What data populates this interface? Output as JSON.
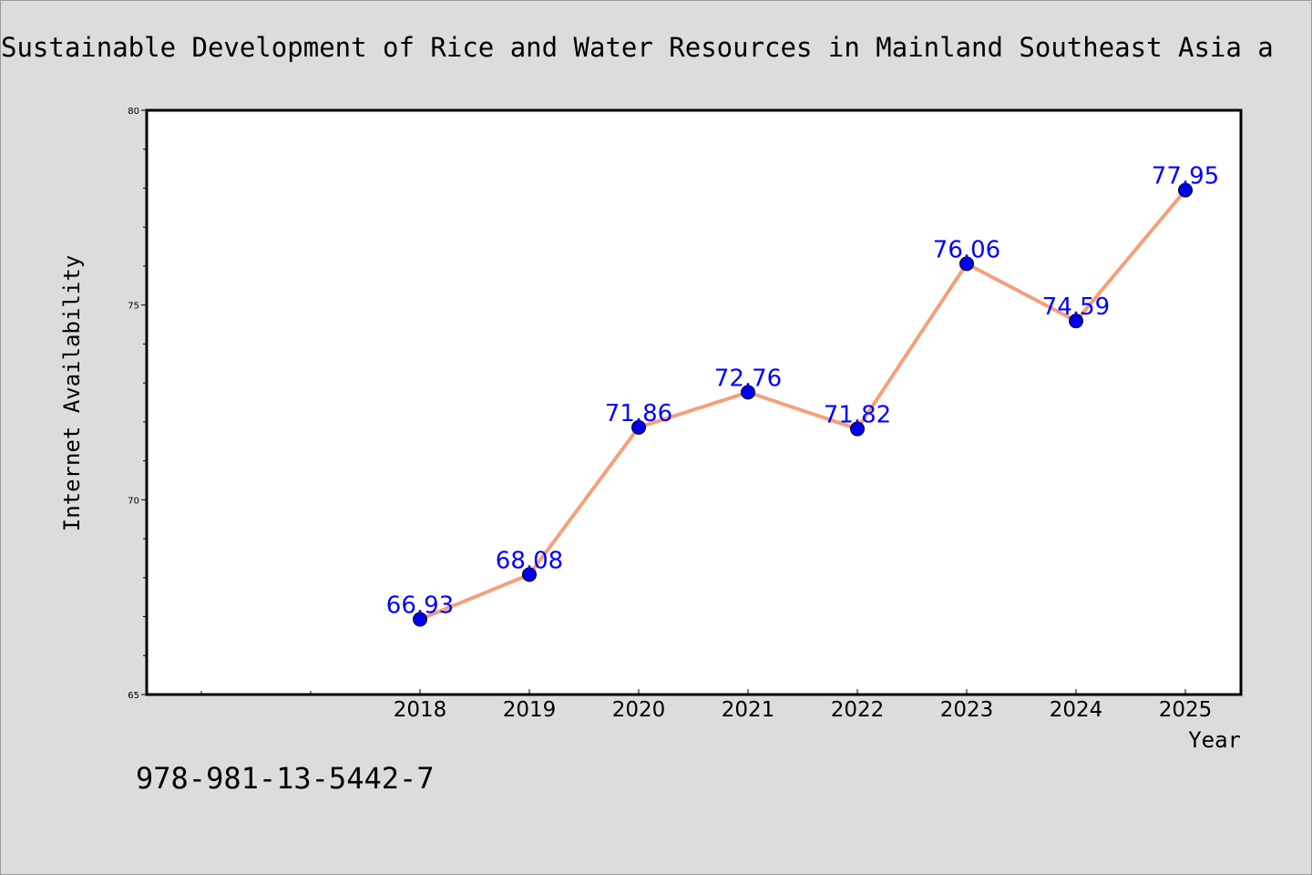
{
  "title": "Sustainable Development of Rice and Water Resources in Mainland Southeast Asia a",
  "footnote": "978-981-13-5442-7",
  "colors": {
    "background": "#dcdcdc",
    "plot_background": "#ffffff",
    "line": "#f4a07a",
    "marker": "#0000ee",
    "label": "#0000ff"
  },
  "chart_data": {
    "type": "line",
    "title": "Sustainable Development of Rice and Water Resources in Mainland Southeast Asia a",
    "xlabel": "Year",
    "ylabel": "Internet Availability",
    "categories": [
      "2018",
      "2019",
      "2020",
      "2021",
      "2022",
      "2023",
      "2024",
      "2025"
    ],
    "series": [
      {
        "values": [
          66.93,
          68.08,
          71.86,
          72.76,
          71.82,
          76.06,
          74.59,
          77.95
        ],
        "data_labels": [
          "66.93",
          "68.08",
          "71.86",
          "72.76",
          "71.82",
          "76.06",
          "74.59",
          "77.95"
        ]
      }
    ],
    "ylim": [
      65,
      80
    ],
    "yticks": [
      "65",
      "70",
      "75",
      "80"
    ],
    "grid": false,
    "legend": "none"
  }
}
